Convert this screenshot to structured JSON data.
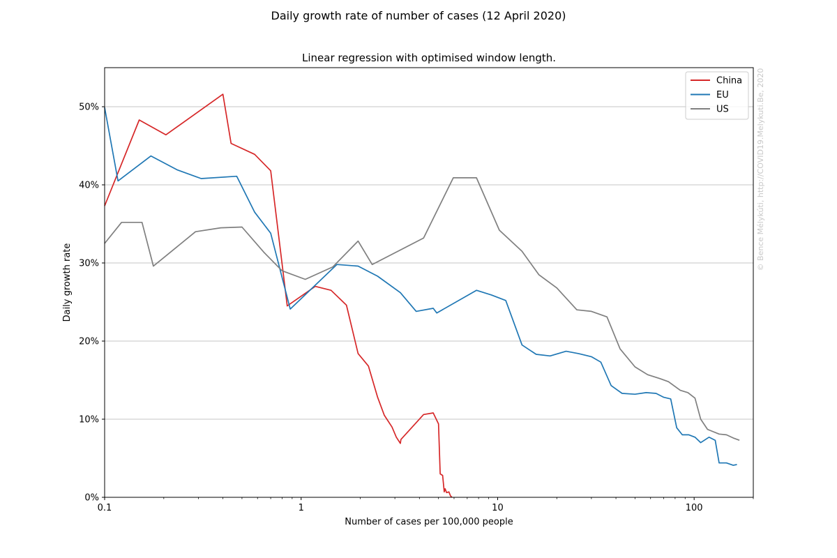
{
  "figure": {
    "suptitle": "Daily growth rate of number of cases (12 April 2020)",
    "watermark": "© Bence Mélykúti, http://COVID19.Melykuti.Be, 2020"
  },
  "chart_data": {
    "type": "line",
    "title": "Linear regression with optimised window length.",
    "xlabel": "Number of cases per 100,000 people",
    "ylabel": "Daily growth rate",
    "xscale": "log",
    "xlim": [
      0.1,
      200
    ],
    "ylim": [
      0,
      0.55
    ],
    "x_ticks": [
      {
        "value": 0.1,
        "label": "0.1"
      },
      {
        "value": 1,
        "label": "1"
      },
      {
        "value": 10,
        "label": "10"
      },
      {
        "value": 100,
        "label": "100"
      }
    ],
    "y_ticks": [
      {
        "value": 0,
        "label": "0%"
      },
      {
        "value": 0.1,
        "label": "10%"
      },
      {
        "value": 0.2,
        "label": "20%"
      },
      {
        "value": 0.3,
        "label": "30%"
      },
      {
        "value": 0.4,
        "label": "40%"
      },
      {
        "value": 0.5,
        "label": "50%"
      }
    ],
    "grid": "horizontal",
    "legend_position": "top-right",
    "series": [
      {
        "name": "China",
        "color": "#d62728",
        "points": [
          [
            0.1,
            0.373
          ],
          [
            0.15,
            0.483
          ],
          [
            0.205,
            0.464
          ],
          [
            0.4,
            0.516
          ],
          [
            0.44,
            0.453
          ],
          [
            0.58,
            0.439
          ],
          [
            0.7,
            0.418
          ],
          [
            0.85,
            0.245
          ],
          [
            1.18,
            0.27
          ],
          [
            1.42,
            0.265
          ],
          [
            1.7,
            0.246
          ],
          [
            1.95,
            0.184
          ],
          [
            2.2,
            0.168
          ],
          [
            2.45,
            0.128
          ],
          [
            2.65,
            0.105
          ],
          [
            2.9,
            0.09
          ],
          [
            3.05,
            0.077
          ],
          [
            3.2,
            0.069
          ],
          [
            3.22,
            0.074
          ],
          [
            4.2,
            0.106
          ],
          [
            4.7,
            0.108
          ],
          [
            5.0,
            0.094
          ],
          [
            5.1,
            0.03
          ],
          [
            5.25,
            0.028
          ],
          [
            5.35,
            0.007
          ],
          [
            5.4,
            0.011
          ],
          [
            5.5,
            0.006
          ],
          [
            5.65,
            0.007
          ],
          [
            5.75,
            0.002
          ],
          [
            5.85,
            0.0
          ]
        ]
      },
      {
        "name": "EU",
        "color": "#1f77b4",
        "points": [
          [
            0.1,
            0.499
          ],
          [
            0.117,
            0.405
          ],
          [
            0.172,
            0.437
          ],
          [
            0.235,
            0.419
          ],
          [
            0.31,
            0.408
          ],
          [
            0.47,
            0.411
          ],
          [
            0.58,
            0.365
          ],
          [
            0.7,
            0.338
          ],
          [
            0.88,
            0.241
          ],
          [
            1.52,
            0.298
          ],
          [
            1.95,
            0.296
          ],
          [
            2.45,
            0.283
          ],
          [
            3.2,
            0.262
          ],
          [
            3.85,
            0.238
          ],
          [
            4.7,
            0.242
          ],
          [
            4.9,
            0.236
          ],
          [
            7.8,
            0.265
          ],
          [
            9.3,
            0.259
          ],
          [
            11.0,
            0.252
          ],
          [
            13.3,
            0.195
          ],
          [
            15.7,
            0.183
          ],
          [
            18.5,
            0.181
          ],
          [
            22.3,
            0.187
          ],
          [
            25.8,
            0.184
          ],
          [
            30.0,
            0.18
          ],
          [
            33.5,
            0.173
          ],
          [
            37.8,
            0.143
          ],
          [
            43.0,
            0.133
          ],
          [
            50.0,
            0.132
          ],
          [
            57.0,
            0.134
          ],
          [
            64.0,
            0.133
          ],
          [
            70.0,
            0.128
          ],
          [
            76.0,
            0.126
          ],
          [
            81.5,
            0.089
          ],
          [
            87.0,
            0.08
          ],
          [
            94.0,
            0.08
          ],
          [
            101.0,
            0.077
          ],
          [
            108.0,
            0.07
          ],
          [
            119.0,
            0.077
          ],
          [
            128.0,
            0.073
          ],
          [
            134.0,
            0.044
          ],
          [
            146.0,
            0.044
          ],
          [
            158.0,
            0.041
          ],
          [
            165.0,
            0.042
          ]
        ]
      },
      {
        "name": "US",
        "color": "#7f7f7f",
        "points": [
          [
            0.1,
            0.325
          ],
          [
            0.122,
            0.352
          ],
          [
            0.155,
            0.352
          ],
          [
            0.177,
            0.296
          ],
          [
            0.29,
            0.34
          ],
          [
            0.39,
            0.345
          ],
          [
            0.5,
            0.346
          ],
          [
            0.65,
            0.313
          ],
          [
            0.8,
            0.29
          ],
          [
            1.05,
            0.279
          ],
          [
            1.45,
            0.295
          ],
          [
            1.95,
            0.328
          ],
          [
            2.3,
            0.298
          ],
          [
            4.2,
            0.332
          ],
          [
            5.95,
            0.409
          ],
          [
            7.8,
            0.409
          ],
          [
            10.2,
            0.342
          ],
          [
            13.3,
            0.315
          ],
          [
            16.2,
            0.285
          ],
          [
            20.0,
            0.268
          ],
          [
            25.3,
            0.24
          ],
          [
            30.0,
            0.238
          ],
          [
            36.0,
            0.231
          ],
          [
            42.0,
            0.19
          ],
          [
            50.0,
            0.167
          ],
          [
            58.0,
            0.157
          ],
          [
            67.0,
            0.152
          ],
          [
            74.0,
            0.148
          ],
          [
            85.0,
            0.137
          ],
          [
            93.0,
            0.134
          ],
          [
            101.0,
            0.127
          ],
          [
            108.0,
            0.1
          ],
          [
            117.0,
            0.087
          ],
          [
            134.0,
            0.081
          ],
          [
            146.0,
            0.08
          ],
          [
            158.0,
            0.076
          ],
          [
            170.0,
            0.073
          ]
        ]
      }
    ]
  }
}
